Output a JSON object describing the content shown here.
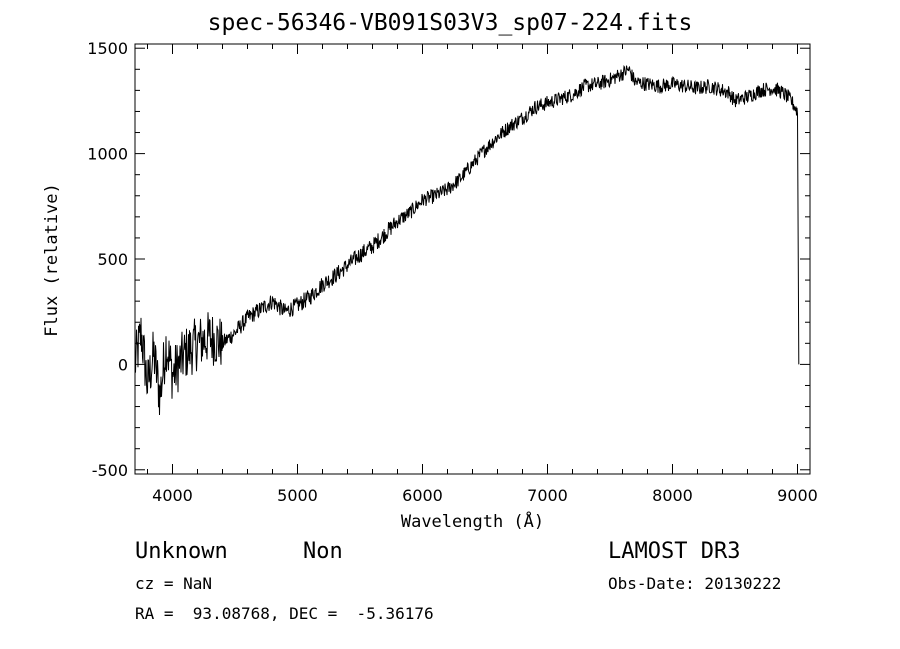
{
  "chart_data": {
    "type": "line",
    "title": "spec-56346-VB091S03V3_sp07-224.fits",
    "xlabel": "Wavelength (Å)",
    "ylabel": "Flux (relative)",
    "xlim": [
      3700,
      9100
    ],
    "ylim": [
      -520,
      1520
    ],
    "x_ticks": [
      4000,
      5000,
      6000,
      7000,
      8000,
      9000
    ],
    "y_ticks": [
      -500,
      0,
      500,
      1000,
      1500
    ],
    "grid": false,
    "series": [
      {
        "x": [
          3700,
          3750,
          3800,
          3850,
          3900,
          3950,
          4000,
          4100,
          4200,
          4300,
          4400,
          4500,
          4600,
          4700,
          4800,
          4900,
          5000,
          5100,
          5200,
          5300,
          5400,
          5500,
          5600,
          5700,
          5800,
          5900,
          6000,
          6100,
          6200,
          6300,
          6400,
          6500,
          6600,
          6700,
          6800,
          6900,
          7000,
          7100,
          7200,
          7300,
          7400,
          7500,
          7600,
          7650,
          7700,
          7800,
          7900,
          8000,
          8100,
          8200,
          8300,
          8400,
          8450,
          8500,
          8550,
          8600,
          8700,
          8800,
          8850,
          8900,
          8950,
          9000,
          9010
        ],
        "y": [
          0,
          150,
          -100,
          50,
          -150,
          100,
          -50,
          50,
          100,
          130,
          100,
          150,
          220,
          260,
          300,
          250,
          280,
          320,
          380,
          420,
          470,
          520,
          560,
          620,
          680,
          720,
          780,
          800,
          830,
          880,
          950,
          1020,
          1080,
          1130,
          1170,
          1220,
          1240,
          1260,
          1280,
          1320,
          1330,
          1350,
          1380,
          1400,
          1340,
          1330,
          1320,
          1330,
          1320,
          1310,
          1320,
          1300,
          1290,
          1250,
          1260,
          1270,
          1300,
          1310,
          1300,
          1280,
          1250,
          1200,
          0
        ]
      }
    ]
  },
  "info": {
    "name": "Unknown",
    "class": "Non",
    "survey": "LAMOST DR3",
    "cz": "cz = NaN",
    "obs_date": "Obs-Date: 20130222",
    "radec": "RA =  93.08768, DEC =  -5.36176"
  }
}
